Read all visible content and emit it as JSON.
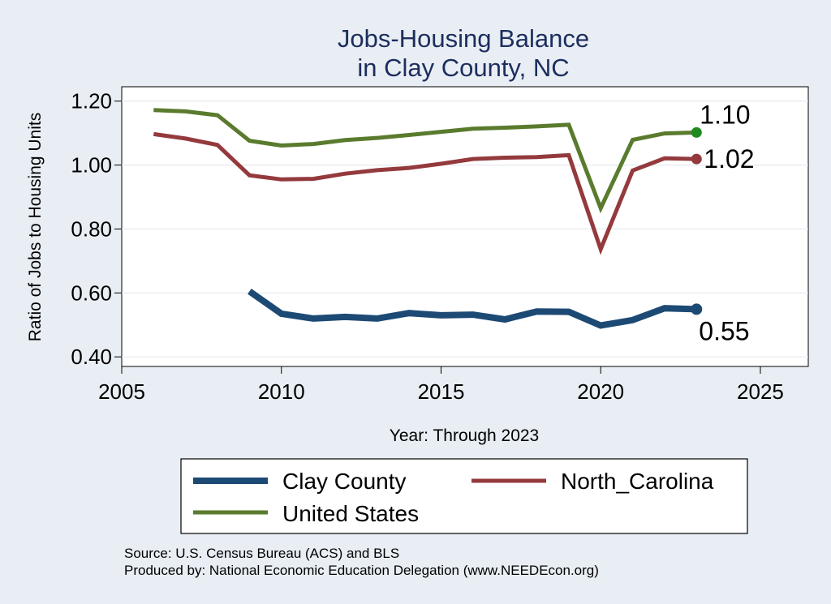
{
  "colors": {
    "background": "#e9eef4",
    "plot_background": "#ffffff",
    "grid": "#e6eaef",
    "title": "#1c2e5e",
    "clay_county": "#1d4a74",
    "north_carolina": "#943a3d",
    "united_states": "#5a7b2e",
    "us_end_marker": "#1f8a1f"
  },
  "chart_data": {
    "type": "line",
    "title": [
      "Jobs-Housing Balance",
      "in Clay County, NC"
    ],
    "xlabel": "Year: Through 2023",
    "ylabel": "Ratio of Jobs to Housing Units",
    "xlim": [
      2005,
      2026.5
    ],
    "ylim": [
      0.37,
      1.245
    ],
    "x_ticks": [
      2005,
      2010,
      2015,
      2020,
      2025
    ],
    "x_tick_labels": [
      "2005",
      "2010",
      "2015",
      "2020",
      "2025"
    ],
    "y_ticks": [
      0.4,
      0.6,
      0.8,
      1.0,
      1.2
    ],
    "y_tick_labels": [
      "0.40",
      "0.60",
      "0.80",
      "1.00",
      "1.20"
    ],
    "grid": true,
    "legend_position": "bottom",
    "series": [
      {
        "name": "Clay County",
        "key": "clay_county",
        "x": [
          2009,
          2010,
          2011,
          2012,
          2013,
          2014,
          2015,
          2016,
          2017,
          2018,
          2019,
          2020,
          2021,
          2022,
          2023
        ],
        "values": [
          0.605,
          0.535,
          0.52,
          0.525,
          0.52,
          0.537,
          0.53,
          0.532,
          0.517,
          0.542,
          0.541,
          0.498,
          0.515,
          0.552,
          0.549
        ],
        "end_label": "0.55"
      },
      {
        "name": "North_Carolina",
        "key": "north_carolina",
        "x": [
          2006,
          2007,
          2008,
          2009,
          2010,
          2011,
          2012,
          2013,
          2014,
          2015,
          2016,
          2017,
          2018,
          2019,
          2020,
          2021,
          2022,
          2023
        ],
        "values": [
          1.097,
          1.083,
          1.063,
          0.968,
          0.955,
          0.957,
          0.973,
          0.984,
          0.991,
          1.004,
          1.019,
          1.023,
          1.025,
          1.031,
          0.737,
          0.983,
          1.021,
          1.019
        ],
        "end_label": "1.02"
      },
      {
        "name": "United States",
        "key": "united_states",
        "x": [
          2006,
          2007,
          2008,
          2009,
          2010,
          2011,
          2012,
          2013,
          2014,
          2015,
          2016,
          2017,
          2018,
          2019,
          2020,
          2021,
          2022,
          2023
        ],
        "values": [
          1.172,
          1.168,
          1.156,
          1.076,
          1.061,
          1.066,
          1.078,
          1.085,
          1.094,
          1.104,
          1.114,
          1.117,
          1.121,
          1.126,
          0.865,
          1.079,
          1.099,
          1.102
        ],
        "end_label": "1.10"
      }
    ],
    "source_lines": [
      "Source: U.S. Census Bureau (ACS) and BLS",
      "Produced by: National Economic Education Delegation (www.NEEDEcon.org)"
    ]
  }
}
